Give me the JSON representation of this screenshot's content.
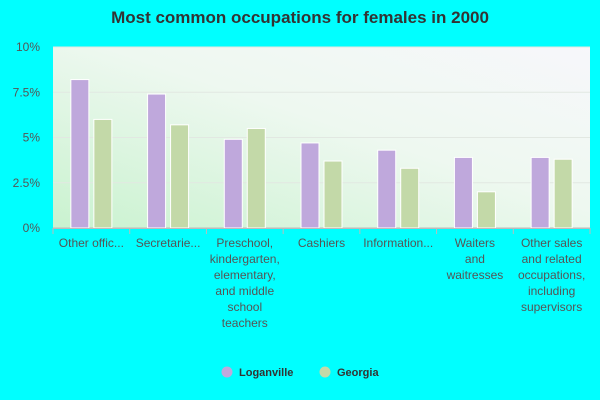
{
  "chart_data": {
    "type": "bar",
    "title": "Most common occupations for females in 2000",
    "xlabel": "",
    "ylabel": "",
    "ylim": [
      0,
      10
    ],
    "yticks": [
      "0%",
      "2.5%",
      "5%",
      "7.5%",
      "10%"
    ],
    "categories": [
      [
        "Other offic..."
      ],
      [
        "Secretarie..."
      ],
      [
        "Preschool,",
        "kindergarten,",
        "elementary,",
        "and middle",
        "school",
        "teachers"
      ],
      [
        "Cashiers"
      ],
      [
        "Information..."
      ],
      [
        "Waiters",
        "and",
        "waitresses"
      ],
      [
        "Other sales",
        "and related",
        "occupations,",
        "including",
        "supervisors"
      ]
    ],
    "series": [
      {
        "name": "Loganville",
        "color": "#bfa8dc",
        "values": [
          8.2,
          7.4,
          4.9,
          4.7,
          4.3,
          3.9,
          3.9
        ]
      },
      {
        "name": "Georgia",
        "color": "#c3d9a8",
        "values": [
          6.0,
          5.7,
          5.5,
          3.7,
          3.3,
          2.0,
          3.8
        ]
      }
    ],
    "grid": true,
    "legend_position": "bottom"
  }
}
